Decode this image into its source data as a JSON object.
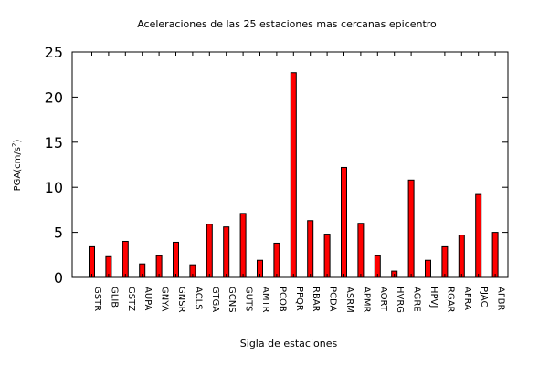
{
  "chart_data": {
    "type": "bar",
    "title": "Aceleraciones de las 25 estaciones mas cercanas epicentro",
    "xlabel": "Sigla de estaciones",
    "ylabel": {
      "main": "PGA(cm/s",
      "sup": "2",
      "close": ")"
    },
    "ylim": [
      0,
      25
    ],
    "yticks": [
      "0",
      "5",
      "10",
      "15",
      "20",
      "25"
    ],
    "grid": false,
    "legend": "none",
    "bar_color": "#ff0000",
    "bar_stroke": "#000000",
    "categories": [
      "GSTR",
      "GLIB",
      "GSTZ",
      "AUPA",
      "GNYA",
      "GNSR",
      "ACLS",
      "GTGA",
      "GCNS",
      "GUTS",
      "AMTR",
      "PCOB",
      "PPQR",
      "RBAR",
      "PCDA",
      "ASRM",
      "APMR",
      "AORT",
      "HVRG",
      "AGRE",
      "HPVJ",
      "RGAR",
      "AFRA",
      "PJAC",
      "AFBR"
    ],
    "values": [
      3.4,
      2.3,
      4.0,
      1.5,
      2.4,
      3.9,
      1.4,
      5.9,
      5.6,
      7.1,
      1.9,
      3.8,
      22.7,
      6.3,
      4.8,
      12.2,
      6.0,
      2.4,
      0.7,
      10.8,
      1.9,
      3.4,
      4.7,
      9.2,
      5.0
    ]
  }
}
